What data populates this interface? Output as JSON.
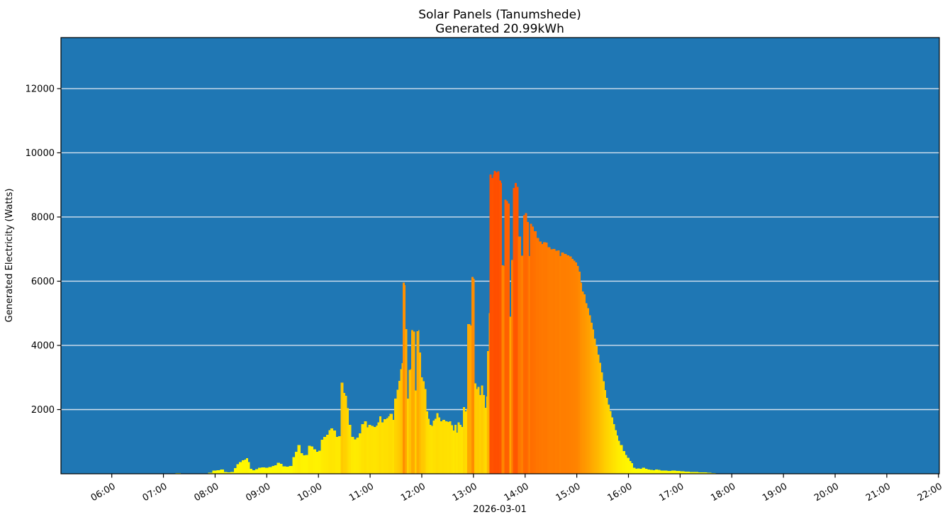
{
  "figure": {
    "title_line1": "Solar Panels (Tanumshede)",
    "title_line2": "Generated 20.99kWh",
    "ylabel": "Generated Electricity (Watts)",
    "xlabel": "2026-03-01"
  },
  "chart_data": {
    "type": "bar",
    "title": "Solar Panels (Tanumshede)",
    "subtitle": "Generated 20.99kWh",
    "xlabel": "2026-03-01",
    "ylabel": "Generated Electricity (Watts)",
    "legend": "none",
    "grid": "horizontal only, near-white lines, drawn under bars",
    "plot_background": "#1f77b4",
    "figure_background": "#ffffff",
    "grid_color": "#eaeef5",
    "colormap": "autumn_r (yellow=0W to red=vmax), bar color encodes wattage",
    "colormap_vmax": 13590,
    "xlim": [
      "05:01",
      "22:01"
    ],
    "ylim": [
      0,
      13590
    ],
    "x_ticks": [
      "06:00",
      "07:00",
      "08:00",
      "09:00",
      "10:00",
      "11:00",
      "12:00",
      "13:00",
      "14:00",
      "15:00",
      "16:00",
      "17:00",
      "18:00",
      "19:00",
      "20:00",
      "21:00",
      "22:00"
    ],
    "y_ticks": [
      2000,
      4000,
      6000,
      8000,
      10000,
      12000
    ],
    "units": "watts",
    "point_format": "[\"HH:MM\", watts] — each value holds until the next timestamp",
    "points": [
      [
        "07:09",
        12
      ],
      [
        "07:14",
        18
      ],
      [
        "07:20",
        14
      ],
      [
        "07:26",
        10
      ],
      [
        "07:31",
        0
      ],
      [
        "07:52",
        30
      ],
      [
        "07:57",
        100
      ],
      [
        "08:02",
        110
      ],
      [
        "08:06",
        130
      ],
      [
        "08:10",
        60
      ],
      [
        "08:14",
        45
      ],
      [
        "08:18",
        50
      ],
      [
        "08:22",
        180
      ],
      [
        "08:25",
        300
      ],
      [
        "08:28",
        360
      ],
      [
        "08:31",
        420
      ],
      [
        "08:34",
        440
      ],
      [
        "08:36",
        490
      ],
      [
        "08:38",
        360
      ],
      [
        "08:40",
        150
      ],
      [
        "08:43",
        110
      ],
      [
        "08:47",
        140
      ],
      [
        "08:50",
        190
      ],
      [
        "08:54",
        200
      ],
      [
        "08:58",
        190
      ],
      [
        "09:02",
        210
      ],
      [
        "09:06",
        240
      ],
      [
        "09:09",
        270
      ],
      [
        "09:12",
        340
      ],
      [
        "09:15",
        310
      ],
      [
        "09:18",
        235
      ],
      [
        "09:22",
        225
      ],
      [
        "09:26",
        245
      ],
      [
        "09:30",
        520
      ],
      [
        "09:33",
        680
      ],
      [
        "09:36",
        900
      ],
      [
        "09:39",
        640
      ],
      [
        "09:42",
        570
      ],
      [
        "09:45",
        590
      ],
      [
        "09:48",
        870
      ],
      [
        "09:51",
        850
      ],
      [
        "09:54",
        760
      ],
      [
        "09:57",
        690
      ],
      [
        "10:00",
        720
      ],
      [
        "10:03",
        1060
      ],
      [
        "10:06",
        1150
      ],
      [
        "10:09",
        1220
      ],
      [
        "10:12",
        1360
      ],
      [
        "10:14",
        1410
      ],
      [
        "10:17",
        1350
      ],
      [
        "10:20",
        1150
      ],
      [
        "10:23",
        1170
      ],
      [
        "10:26",
        2840
      ],
      [
        "10:29",
        2520
      ],
      [
        "10:31",
        2430
      ],
      [
        "10:33",
        2040
      ],
      [
        "10:35",
        1520
      ],
      [
        "10:38",
        1150
      ],
      [
        "10:41",
        1070
      ],
      [
        "10:44",
        1130
      ],
      [
        "10:47",
        1260
      ],
      [
        "10:50",
        1550
      ],
      [
        "10:53",
        1640
      ],
      [
        "10:56",
        1450
      ],
      [
        "10:58",
        1520
      ],
      [
        "11:01",
        1490
      ],
      [
        "11:04",
        1460
      ],
      [
        "11:07",
        1500
      ],
      [
        "11:09",
        1600
      ],
      [
        "11:11",
        1790
      ],
      [
        "11:13",
        1600
      ],
      [
        "11:16",
        1700
      ],
      [
        "11:19",
        1730
      ],
      [
        "11:21",
        1790
      ],
      [
        "11:23",
        1870
      ],
      [
        "11:26",
        1680
      ],
      [
        "11:28",
        2340
      ],
      [
        "11:31",
        2620
      ],
      [
        "11:33",
        2890
      ],
      [
        "11:35",
        3260
      ],
      [
        "11:37",
        3450
      ],
      [
        "11:38",
        5950
      ],
      [
        "11:40",
        5880
      ],
      [
        "11:41",
        4510
      ],
      [
        "11:43",
        2340
      ],
      [
        "11:45",
        3240
      ],
      [
        "11:47",
        3260
      ],
      [
        "11:48",
        4470
      ],
      [
        "11:50",
        4430
      ],
      [
        "11:52",
        2600
      ],
      [
        "11:54",
        4440
      ],
      [
        "11:56",
        4480
      ],
      [
        "11:57",
        3780
      ],
      [
        "11:59",
        3010
      ],
      [
        "12:01",
        2880
      ],
      [
        "12:03",
        2640
      ],
      [
        "12:05",
        1940
      ],
      [
        "12:07",
        1710
      ],
      [
        "12:09",
        1530
      ],
      [
        "12:11",
        1490
      ],
      [
        "12:13",
        1660
      ],
      [
        "12:15",
        1710
      ],
      [
        "12:17",
        1890
      ],
      [
        "12:19",
        1760
      ],
      [
        "12:21",
        1640
      ],
      [
        "12:24",
        1680
      ],
      [
        "12:27",
        1640
      ],
      [
        "12:30",
        1610
      ],
      [
        "12:32",
        1640
      ],
      [
        "12:34",
        1510
      ],
      [
        "12:36",
        1350
      ],
      [
        "12:38",
        1530
      ],
      [
        "12:40",
        1280
      ],
      [
        "12:42",
        1600
      ],
      [
        "12:44",
        1530
      ],
      [
        "12:46",
        1460
      ],
      [
        "12:48",
        2080
      ],
      [
        "12:50",
        1940
      ],
      [
        "12:52",
        2010
      ],
      [
        "12:53",
        4660
      ],
      [
        "12:56",
        4620
      ],
      [
        "12:58",
        6130
      ],
      [
        "13:00",
        6080
      ],
      [
        "13:01",
        2820
      ],
      [
        "13:03",
        2640
      ],
      [
        "13:05",
        2710
      ],
      [
        "13:07",
        2450
      ],
      [
        "13:09",
        2750
      ],
      [
        "13:11",
        2450
      ],
      [
        "13:13",
        2050
      ],
      [
        "13:15",
        2410
      ],
      [
        "13:16",
        3820
      ],
      [
        "13:18",
        5000
      ],
      [
        "13:19",
        9330
      ],
      [
        "13:21",
        9210
      ],
      [
        "13:23",
        9330
      ],
      [
        "13:24",
        9440
      ],
      [
        "13:26",
        9390
      ],
      [
        "13:28",
        9430
      ],
      [
        "13:30",
        9140
      ],
      [
        "13:32",
        9060
      ],
      [
        "13:33",
        6500
      ],
      [
        "13:35",
        6470
      ],
      [
        "13:36",
        8540
      ],
      [
        "13:38",
        8500
      ],
      [
        "13:40",
        8420
      ],
      [
        "13:42",
        4890
      ],
      [
        "13:44",
        6660
      ],
      [
        "13:46",
        8910
      ],
      [
        "13:48",
        9060
      ],
      [
        "13:50",
        8940
      ],
      [
        "13:52",
        7390
      ],
      [
        "13:55",
        6800
      ],
      [
        "13:58",
        8050
      ],
      [
        "14:00",
        8120
      ],
      [
        "14:02",
        7850
      ],
      [
        "14:04",
        6780
      ],
      [
        "14:06",
        7790
      ],
      [
        "14:08",
        7700
      ],
      [
        "14:10",
        7560
      ],
      [
        "14:13",
        7350
      ],
      [
        "14:16",
        7240
      ],
      [
        "14:19",
        7160
      ],
      [
        "14:21",
        7210
      ],
      [
        "14:24",
        7200
      ],
      [
        "14:26",
        7060
      ],
      [
        "14:29",
        6990
      ],
      [
        "14:32",
        7010
      ],
      [
        "14:35",
        6950
      ],
      [
        "14:38",
        6960
      ],
      [
        "14:40",
        6780
      ],
      [
        "14:42",
        6900
      ],
      [
        "14:45",
        6850
      ],
      [
        "14:48",
        6810
      ],
      [
        "14:51",
        6770
      ],
      [
        "14:54",
        6700
      ],
      [
        "14:56",
        6640
      ],
      [
        "14:58",
        6590
      ],
      [
        "15:00",
        6480
      ],
      [
        "15:02",
        6300
      ],
      [
        "15:04",
        5960
      ],
      [
        "15:06",
        5680
      ],
      [
        "15:08",
        5590
      ],
      [
        "15:10",
        5310
      ],
      [
        "15:12",
        5160
      ],
      [
        "15:14",
        4940
      ],
      [
        "15:16",
        4710
      ],
      [
        "15:18",
        4500
      ],
      [
        "15:20",
        4210
      ],
      [
        "15:22",
        3980
      ],
      [
        "15:24",
        3710
      ],
      [
        "15:26",
        3460
      ],
      [
        "15:28",
        3160
      ],
      [
        "15:30",
        2880
      ],
      [
        "15:32",
        2610
      ],
      [
        "15:34",
        2360
      ],
      [
        "15:36",
        2160
      ],
      [
        "15:38",
        1960
      ],
      [
        "15:40",
        1760
      ],
      [
        "15:42",
        1550
      ],
      [
        "15:44",
        1360
      ],
      [
        "15:46",
        1190
      ],
      [
        "15:48",
        1030
      ],
      [
        "15:50",
        890
      ],
      [
        "15:53",
        710
      ],
      [
        "15:56",
        590
      ],
      [
        "15:58",
        500
      ],
      [
        "16:01",
        400
      ],
      [
        "16:03",
        330
      ],
      [
        "16:05",
        190
      ],
      [
        "16:08",
        155
      ],
      [
        "16:10",
        165
      ],
      [
        "16:13",
        150
      ],
      [
        "16:16",
        185
      ],
      [
        "16:19",
        160
      ],
      [
        "16:22",
        135
      ],
      [
        "16:25",
        120
      ],
      [
        "16:28",
        115
      ],
      [
        "16:31",
        130
      ],
      [
        "16:34",
        120
      ],
      [
        "16:37",
        105
      ],
      [
        "16:41",
        95
      ],
      [
        "16:45",
        90
      ],
      [
        "16:50",
        100
      ],
      [
        "16:55",
        85
      ],
      [
        "17:00",
        75
      ],
      [
        "17:05",
        70
      ],
      [
        "17:11",
        55
      ],
      [
        "17:16",
        50
      ],
      [
        "17:21",
        45
      ],
      [
        "17:26",
        40
      ],
      [
        "17:31",
        30
      ],
      [
        "17:36",
        25
      ],
      [
        "17:41",
        15
      ],
      [
        "17:45",
        0
      ]
    ]
  }
}
